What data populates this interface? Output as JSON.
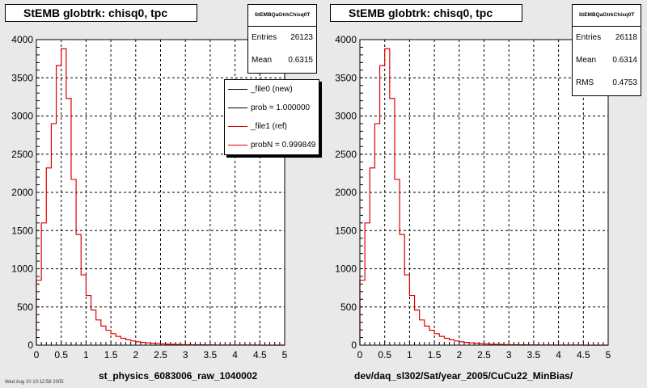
{
  "colors": {
    "pad_bg": "#e9e9e9",
    "frame": "#ffffff",
    "new_line": "#000000",
    "ref_line": "#e00000",
    "grid": "#000000"
  },
  "footer_text": "Wed Aug 10 10:12:58 2005",
  "chart_data": [
    {
      "type": "bar",
      "histogram": true,
      "title": "StEMB globtrk: chisq0, tpc",
      "xlabel": "st_physics_6083006_raw_1040002",
      "ylabel": "",
      "xlim": [
        0,
        5
      ],
      "ylim": [
        0,
        4000
      ],
      "x_ticks": [
        "0",
        "0.5",
        "1",
        "1.5",
        "2",
        "2.5",
        "3",
        "3.5",
        "4",
        "4.5",
        "5"
      ],
      "y_ticks": [
        "0",
        "500",
        "1000",
        "1500",
        "2000",
        "2500",
        "3000",
        "3500",
        "4000"
      ],
      "grid": true,
      "bin_width": 0.1,
      "series": [
        {
          "color": "#e00000",
          "values": [
            850,
            1600,
            2320,
            2900,
            3660,
            3880,
            3230,
            2170,
            1450,
            920,
            650,
            460,
            330,
            250,
            195,
            150,
            115,
            90,
            70,
            55,
            44,
            36,
            30,
            24,
            20,
            16,
            13,
            11,
            9,
            7,
            6,
            5,
            4,
            4,
            3,
            3,
            2,
            2,
            2,
            1,
            1,
            1,
            1,
            1,
            1,
            0,
            0,
            0,
            0,
            0
          ]
        }
      ],
      "stats": {
        "name": "StEMBQaGtrkChisq0T",
        "entries_label": "Entries",
        "entries": "26123",
        "mean_label": "Mean",
        "mean": "0.6315"
      },
      "legend": {
        "position": "top-right",
        "entries": [
          {
            "label": "_file0 (new)",
            "color": "#000000"
          },
          {
            "label": "prob = 1.000000",
            "color": "#000000"
          },
          {
            "label": "_file1 (ref)",
            "color": "#e00000"
          },
          {
            "label": "probN = 0.999849",
            "color": "#e00000"
          }
        ]
      }
    },
    {
      "type": "bar",
      "histogram": true,
      "title": "StEMB globtrk: chisq0, tpc",
      "xlabel": "dev/daq_sl302/Sat/year_2005/CuCu22_MinBias/",
      "ylabel": "",
      "xlim": [
        0,
        5
      ],
      "ylim": [
        0,
        4000
      ],
      "x_ticks": [
        "0",
        "0.5",
        "1",
        "1.5",
        "2",
        "2.5",
        "3",
        "3.5",
        "4",
        "4.5",
        "5"
      ],
      "y_ticks": [
        "0",
        "500",
        "1000",
        "1500",
        "2000",
        "2500",
        "3000",
        "3500",
        "4000"
      ],
      "grid": true,
      "bin_width": 0.1,
      "series": [
        {
          "color": "#e00000",
          "values": [
            850,
            1600,
            2320,
            2900,
            3660,
            3880,
            3230,
            2170,
            1450,
            920,
            650,
            460,
            330,
            250,
            195,
            150,
            115,
            90,
            70,
            55,
            44,
            36,
            30,
            24,
            20,
            16,
            13,
            11,
            9,
            7,
            6,
            5,
            4,
            4,
            3,
            3,
            2,
            2,
            2,
            1,
            1,
            1,
            1,
            1,
            1,
            0,
            0,
            0,
            0,
            0
          ]
        }
      ],
      "stats": {
        "name": "StEMBQaGtrkChisq0T",
        "entries_label": "Entries",
        "entries": "26118",
        "mean_label": "Mean",
        "mean": "0.6314",
        "rms_label": "RMS",
        "rms": "0.4753"
      }
    }
  ]
}
